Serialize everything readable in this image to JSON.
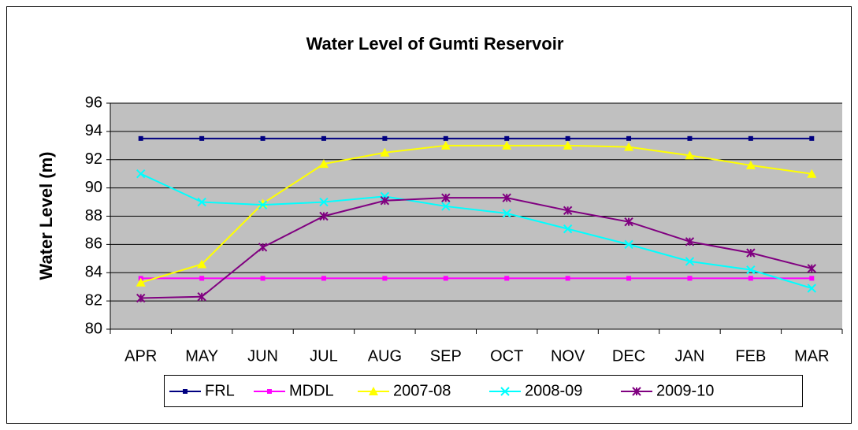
{
  "chart_data": {
    "type": "line",
    "title": "Water Level of Gumti Reservoir",
    "y_label": "Water Level (m)",
    "categories": [
      "APR",
      "MAY",
      "JUN",
      "JUL",
      "AUG",
      "SEP",
      "OCT",
      "NOV",
      "DEC",
      "JAN",
      "FEB",
      "MAR"
    ],
    "series": [
      {
        "name": "FRL",
        "color": "#000080",
        "marker": "square",
        "values": [
          93.5,
          93.5,
          93.5,
          93.5,
          93.5,
          93.5,
          93.5,
          93.5,
          93.5,
          93.5,
          93.5,
          93.5
        ]
      },
      {
        "name": "MDDL",
        "color": "#ff00ff",
        "marker": "square",
        "values": [
          83.6,
          83.6,
          83.6,
          83.6,
          83.6,
          83.6,
          83.6,
          83.6,
          83.6,
          83.6,
          83.6,
          83.6
        ]
      },
      {
        "name": "2007-08",
        "color": "#ffff00",
        "marker": "triangle",
        "values": [
          83.3,
          84.6,
          88.9,
          91.7,
          92.5,
          93.0,
          93.0,
          93.0,
          92.9,
          92.3,
          91.6,
          91.0
        ]
      },
      {
        "name": "2008-09",
        "color": "#00ffff",
        "marker": "x",
        "values": [
          91.0,
          89.0,
          88.8,
          89.0,
          89.4,
          88.7,
          88.2,
          87.1,
          86.0,
          84.8,
          84.2,
          82.9
        ]
      },
      {
        "name": "2009-10",
        "color": "#800080",
        "marker": "asterisk",
        "values": [
          82.2,
          82.3,
          85.8,
          88.0,
          89.1,
          89.3,
          89.3,
          88.4,
          87.6,
          86.2,
          85.4,
          84.3
        ]
      }
    ],
    "ylim": [
      80,
      96
    ],
    "yticks": [
      80,
      82,
      84,
      86,
      88,
      90,
      92,
      94,
      96
    ],
    "grid": true,
    "legend": "bottom"
  }
}
